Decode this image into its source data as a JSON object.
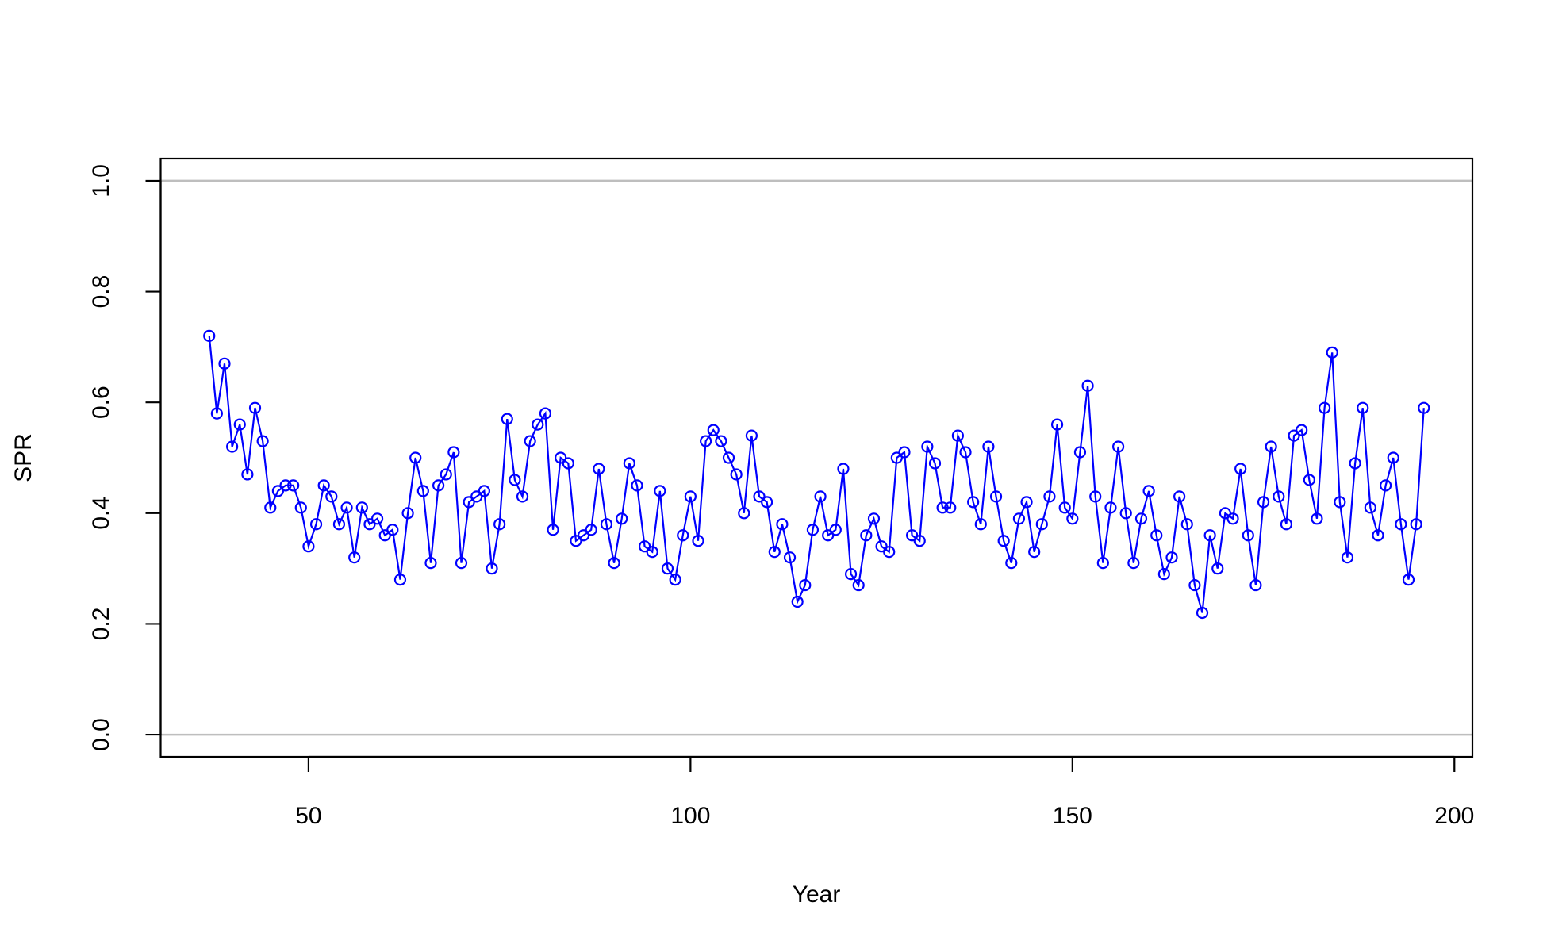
{
  "chart_data": {
    "type": "line",
    "x_label": "Year",
    "y_label": "SPR",
    "x": [
      37,
      38,
      39,
      40,
      41,
      42,
      43,
      44,
      45,
      46,
      47,
      48,
      49,
      50,
      51,
      52,
      53,
      54,
      55,
      56,
      57,
      58,
      59,
      60,
      61,
      62,
      63,
      64,
      65,
      66,
      67,
      68,
      69,
      70,
      71,
      72,
      73,
      74,
      75,
      76,
      77,
      78,
      79,
      80,
      81,
      82,
      83,
      84,
      85,
      86,
      87,
      88,
      89,
      90,
      91,
      92,
      93,
      94,
      95,
      96,
      97,
      98,
      99,
      100,
      101,
      102,
      103,
      104,
      105,
      106,
      107,
      108,
      109,
      110,
      111,
      112,
      113,
      114,
      115,
      116,
      117,
      118,
      119,
      120,
      121,
      122,
      123,
      124,
      125,
      126,
      127,
      128,
      129,
      130,
      131,
      132,
      133,
      134,
      135,
      136,
      137,
      138,
      139,
      140,
      141,
      142,
      143,
      144,
      145,
      146,
      147,
      148,
      149,
      150,
      151,
      152,
      153,
      154,
      155,
      156,
      157,
      158,
      159,
      160,
      161,
      162,
      163,
      164,
      165,
      166,
      167,
      168,
      169,
      170,
      171,
      172,
      173,
      174,
      175,
      176,
      177,
      178,
      179,
      180,
      181,
      182,
      183,
      184,
      185,
      186,
      187,
      188,
      189,
      190,
      191,
      192,
      193,
      194,
      195,
      196
    ],
    "series": [
      {
        "name": "SPR",
        "color": "#0000ff",
        "values": [
          0.72,
          0.58,
          0.67,
          0.52,
          0.56,
          0.47,
          0.59,
          0.53,
          0.41,
          0.44,
          0.45,
          0.45,
          0.41,
          0.34,
          0.38,
          0.45,
          0.43,
          0.38,
          0.41,
          0.32,
          0.41,
          0.38,
          0.39,
          0.36,
          0.37,
          0.28,
          0.4,
          0.5,
          0.44,
          0.31,
          0.45,
          0.47,
          0.51,
          0.31,
          0.42,
          0.43,
          0.44,
          0.3,
          0.38,
          0.57,
          0.46,
          0.43,
          0.53,
          0.56,
          0.58,
          0.37,
          0.5,
          0.49,
          0.35,
          0.36,
          0.37,
          0.48,
          0.38,
          0.31,
          0.39,
          0.49,
          0.45,
          0.34,
          0.33,
          0.44,
          0.3,
          0.28,
          0.36,
          0.43,
          0.35,
          0.53,
          0.55,
          0.53,
          0.5,
          0.47,
          0.4,
          0.54,
          0.43,
          0.42,
          0.33,
          0.38,
          0.32,
          0.24,
          0.27,
          0.37,
          0.43,
          0.36,
          0.37,
          0.48,
          0.29,
          0.27,
          0.36,
          0.39,
          0.34,
          0.33,
          0.5,
          0.51,
          0.36,
          0.35,
          0.52,
          0.49,
          0.41,
          0.41,
          0.54,
          0.51,
          0.42,
          0.38,
          0.52,
          0.43,
          0.35,
          0.31,
          0.39,
          0.42,
          0.33,
          0.38,
          0.43,
          0.56,
          0.41,
          0.39,
          0.51,
          0.63,
          0.43,
          0.31,
          0.41,
          0.52,
          0.4,
          0.31,
          0.39,
          0.44,
          0.36,
          0.29,
          0.32,
          0.43,
          0.38,
          0.27,
          0.22,
          0.36,
          0.3,
          0.4,
          0.39,
          0.48,
          0.36,
          0.27,
          0.42,
          0.52,
          0.43,
          0.38,
          0.54,
          0.55,
          0.46,
          0.39,
          0.59,
          0.69,
          0.42,
          0.32,
          0.49,
          0.59,
          0.41,
          0.36,
          0.45,
          0.5,
          0.38,
          0.28,
          0.38,
          0.59
        ]
      }
    ],
    "xlim": [
      30.64,
      202.36
    ],
    "ylim": [
      -0.04,
      1.04
    ],
    "xticks": [
      50,
      100,
      150,
      200
    ],
    "yticks": [
      {
        "value": 0,
        "label": "0.0"
      },
      0.2,
      0.4,
      0.6,
      0.8,
      {
        "value": 1,
        "label": "1.0"
      }
    ],
    "hlines": [
      0,
      1
    ],
    "hline_color": "#bebebe"
  }
}
